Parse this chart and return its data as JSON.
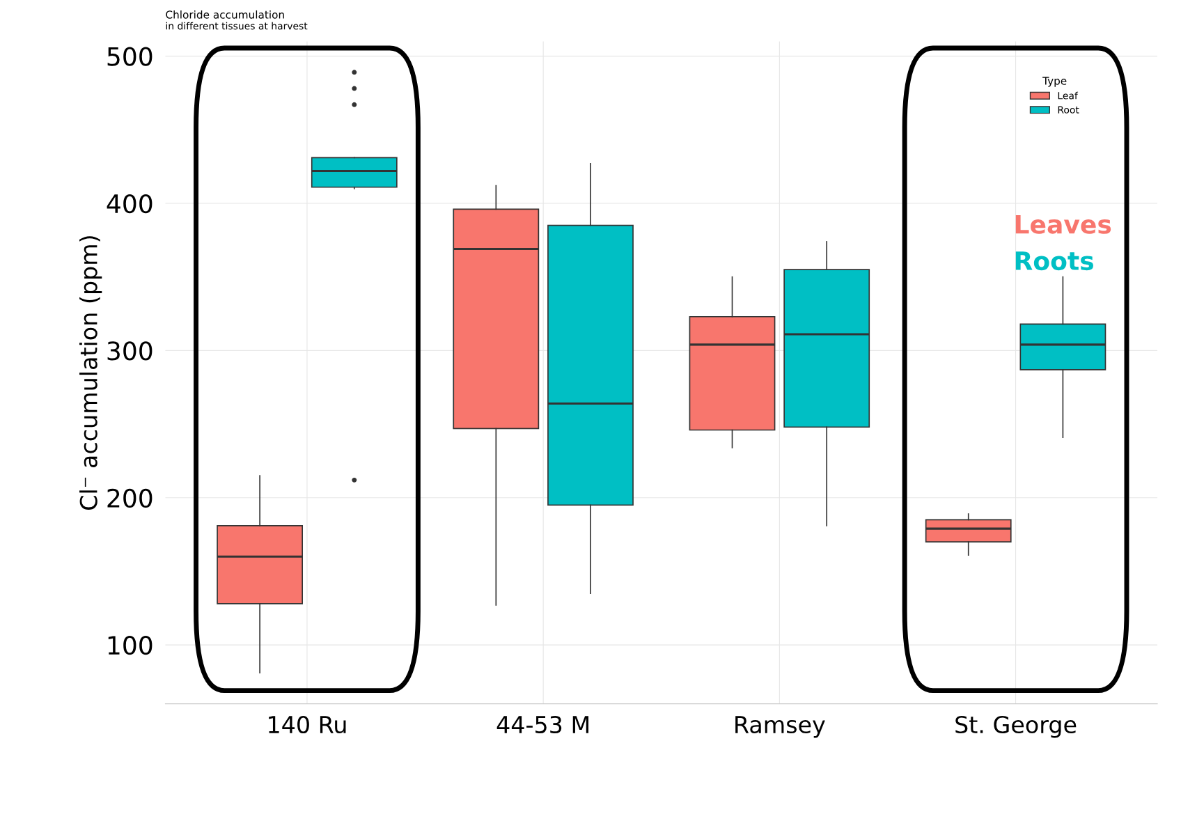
{
  "chart_data": {
    "type": "box",
    "title": "Chloride accumulation",
    "subtitle": "in different tissues at harvest",
    "ylabel": "Cl⁻ accumulation (ppm)",
    "legend_title": "Type",
    "categories": [
      "140 Ru",
      "44-53 M",
      "Ramsey",
      "St. George"
    ],
    "series": [
      {
        "name": "Leaf",
        "color": "#f8766d",
        "boxes": [
          {
            "low": 81,
            "q1": 128,
            "median": 160,
            "q3": 181,
            "high": 215
          },
          {
            "low": 127,
            "q1": 247,
            "median": 369,
            "q3": 396,
            "high": 412
          },
          {
            "low": 234,
            "q1": 246,
            "median": 304,
            "q3": 323,
            "high": 350
          },
          {
            "low": 161,
            "q1": 170,
            "median": 179,
            "q3": 185,
            "high": 189
          }
        ]
      },
      {
        "name": "Root",
        "color": "#00bfc4",
        "boxes": [
          {
            "low": 410,
            "q1": 411,
            "median": 422,
            "q3": 431,
            "high": 431,
            "outliers": [
              489,
              478,
              467,
              212
            ]
          },
          {
            "low": 135,
            "q1": 195,
            "median": 264,
            "q3": 385,
            "high": 427
          },
          {
            "low": 181,
            "q1": 248,
            "median": 311,
            "q3": 355,
            "high": 374
          },
          {
            "low": 241,
            "q1": 287,
            "median": 304,
            "q3": 318,
            "high": 350
          }
        ]
      }
    ],
    "ylim": [
      60,
      510
    ],
    "yticks": [
      100,
      200,
      300,
      400,
      500
    ],
    "grid": true,
    "legend": "top right",
    "annotations": [
      "Leaves",
      "Roots"
    ]
  }
}
